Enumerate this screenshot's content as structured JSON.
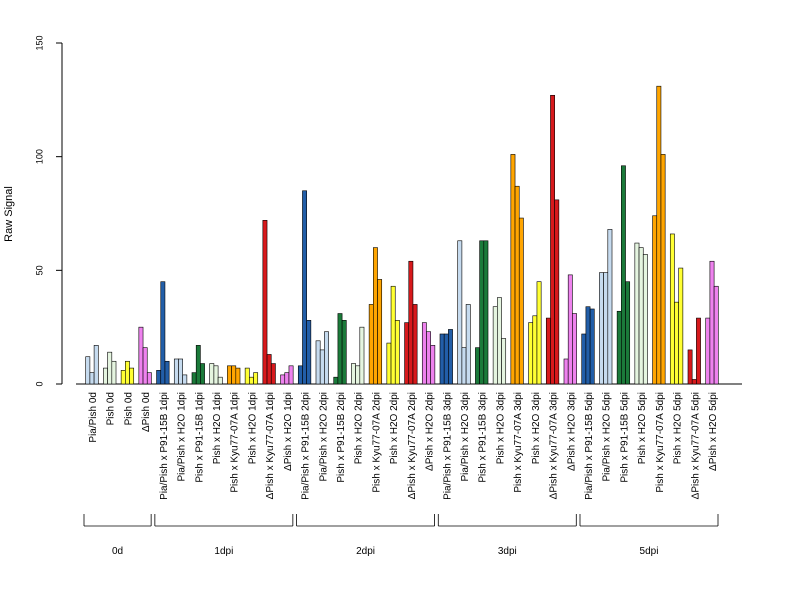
{
  "chart_data": {
    "type": "bar",
    "ylabel": "Raw Signal",
    "ylim": [
      0,
      150
    ],
    "yticks": [
      0,
      50,
      100,
      150
    ],
    "grid": false,
    "legend": "none",
    "categories": [
      "Pia/Pish 0d",
      "Pish 0d",
      "Pish 0d",
      "ΔPish 0d",
      "Pia/Pish x P91-15B 1dpi",
      "Pia/Pish x H2O 1dpi",
      "Pish x P91-15B 1dpi",
      "Pish x H2O 1dpi",
      "Pish x Kyu77-07A 1dpi",
      "Pish x H2O 1dpi",
      "ΔPish x Kyu77-07A 1dpi",
      "ΔPish x H2O 1dpi",
      "Pia/Pish x P91-15B 2dpi",
      "Pia/Pish x H2O 2dpi",
      "Pish x P91-15B 2dpi",
      "Pish x H2O 2dpi",
      "Pish x Kyu77-07A 2dpi",
      "Pish x H2O 2dpi",
      "ΔPish x Kyu77-07A 2dpi",
      "ΔPish x H2O 2dpi",
      "Pia/Pish x P91-15B 3dpi",
      "Pia/Pish x H2O 3dpi",
      "Pish x P91-15B 3dpi",
      "Pish x H2O 3dpi",
      "Pish x Kyu77-07A 3dpi",
      "Pish x H2O 3dpi",
      "ΔPish x Kyu77-07A 3dpi",
      "ΔPish x H2O 3dpi",
      "Pia/Pish x P91-15B 5dpi",
      "Pia/Pish x H2O 5dpi",
      "Pish x P91-15B 5dpi",
      "Pish x H2O 5dpi",
      "Pish x Kyu77-07A 5dpi",
      "Pish x H2O 5dpi",
      "ΔPish x Kyu77-07A 5dpi",
      "ΔPish x H2O 5dpi"
    ],
    "colors": [
      "#c6dbef",
      "#e5f5e0",
      "#ffff33",
      "#ee82ee",
      "#225ea8",
      "#c6dbef",
      "#1b7a3a",
      "#e5f5e0",
      "#ffa500",
      "#ffff33",
      "#d7191c",
      "#ee82ee",
      "#225ea8",
      "#c6dbef",
      "#1b7a3a",
      "#e5f5e0",
      "#ffa500",
      "#ffff33",
      "#d7191c",
      "#ee82ee",
      "#225ea8",
      "#c6dbef",
      "#1b7a3a",
      "#e5f5e0",
      "#ffa500",
      "#ffff33",
      "#d7191c",
      "#ee82ee",
      "#225ea8",
      "#c6dbef",
      "#1b7a3a",
      "#e5f5e0",
      "#ffa500",
      "#ffff33",
      "#d7191c",
      "#ee82ee"
    ],
    "values": [
      [
        12,
        5,
        17
      ],
      [
        7,
        14,
        10
      ],
      [
        6,
        10,
        7
      ],
      [
        25,
        16,
        5
      ],
      [
        6,
        45,
        10
      ],
      [
        11,
        11,
        4
      ],
      [
        5,
        17,
        9
      ],
      [
        9,
        8,
        3
      ],
      [
        8,
        8,
        7
      ],
      [
        7,
        3,
        5
      ],
      [
        72,
        13,
        9
      ],
      [
        4,
        5,
        8
      ],
      [
        8,
        85,
        28
      ],
      [
        19,
        15,
        23
      ],
      [
        3,
        31,
        28
      ],
      [
        9,
        8,
        25
      ],
      [
        35,
        60,
        46
      ],
      [
        18,
        43,
        28
      ],
      [
        27,
        54,
        35
      ],
      [
        27,
        23,
        17
      ],
      [
        22,
        22,
        24
      ],
      [
        63,
        16,
        35
      ],
      [
        16,
        63,
        63
      ],
      [
        34,
        38,
        20
      ],
      [
        101,
        87,
        73
      ],
      [
        27,
        30,
        45
      ],
      [
        29,
        127,
        81
      ],
      [
        11,
        48,
        31
      ],
      [
        22,
        34,
        33
      ],
      [
        49,
        49,
        68
      ],
      [
        32,
        96,
        45
      ],
      [
        62,
        60,
        57
      ],
      [
        74,
        131,
        101
      ],
      [
        66,
        36,
        51
      ],
      [
        15,
        2,
        29
      ],
      [
        29,
        54,
        43
      ]
    ],
    "groups": [
      {
        "label": "0d",
        "start": 0,
        "end": 3
      },
      {
        "label": "1dpi",
        "start": 4,
        "end": 11
      },
      {
        "label": "2dpi",
        "start": 12,
        "end": 19
      },
      {
        "label": "3dpi",
        "start": 20,
        "end": 27
      },
      {
        "label": "5dpi",
        "start": 28,
        "end": 35
      }
    ]
  }
}
